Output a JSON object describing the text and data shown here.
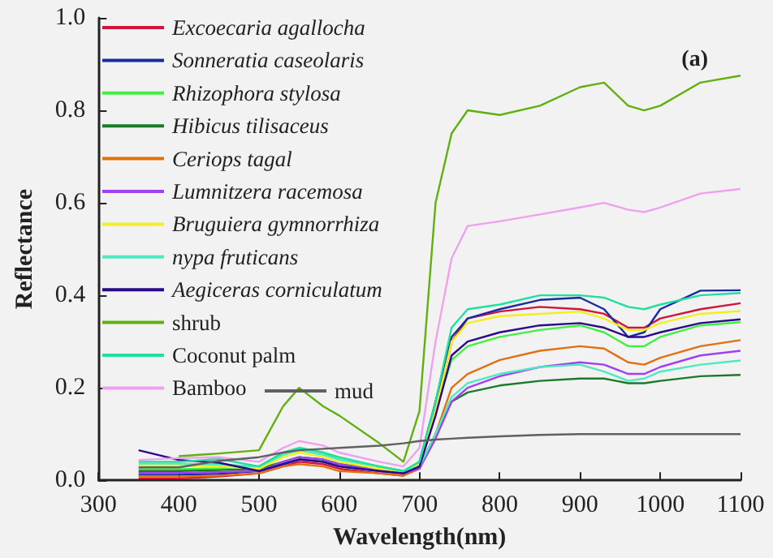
{
  "chart_data": {
    "type": "line",
    "xlabel": "Wavelength(nm)",
    "ylabel": "Reflectance",
    "annotations": [
      "(a)"
    ],
    "x": [
      350,
      400,
      450,
      500,
      530,
      550,
      580,
      600,
      650,
      680,
      700,
      720,
      740,
      760,
      800,
      850,
      900,
      930,
      960,
      980,
      1000,
      1050,
      1100
    ],
    "xlim": [
      300,
      1100
    ],
    "xticks": [
      300,
      400,
      500,
      600,
      700,
      800,
      900,
      1000,
      1100
    ],
    "ylim": [
      0,
      1
    ],
    "yticks": [
      {
        "value": 0,
        "label": "0.0"
      },
      {
        "value": 0.2,
        "label": "0.2"
      },
      {
        "value": 0.4,
        "label": "0.4"
      },
      {
        "value": 0.6,
        "label": "0.6"
      },
      {
        "value": 0.8,
        "label": "0.8"
      },
      {
        "value": 1,
        "label": "1.0"
      }
    ],
    "grid": false,
    "legend": "top left",
    "marker": "none",
    "line_style": "solid",
    "series": [
      {
        "name": "Excoecaria agallocha",
        "color": "#d2143c",
        "values": [
          0.004,
          0.004,
          0.008,
          0.015,
          0.03,
          0.04,
          0.035,
          0.025,
          0.015,
          0.01,
          0.03,
          0.15,
          0.3,
          0.35,
          0.365,
          0.375,
          0.37,
          0.36,
          0.33,
          0.33,
          0.35,
          0.37,
          0.383
        ]
      },
      {
        "name": "Sonneratia caseolaris",
        "color": "#1a2aa0",
        "values": [
          0.012,
          0.012,
          0.014,
          0.02,
          0.035,
          0.045,
          0.04,
          0.03,
          0.02,
          0.015,
          0.04,
          0.17,
          0.31,
          0.35,
          0.37,
          0.39,
          0.395,
          0.37,
          0.31,
          0.32,
          0.37,
          0.41,
          0.411
        ]
      },
      {
        "name": "Rhizophora stylosa",
        "color": "#40f040",
        "values": [
          0.024,
          0.024,
          0.026,
          0.03,
          0.06,
          0.07,
          0.06,
          0.045,
          0.03,
          0.02,
          0.04,
          0.15,
          0.26,
          0.29,
          0.31,
          0.325,
          0.335,
          0.32,
          0.29,
          0.29,
          0.31,
          0.335,
          0.342
        ]
      },
      {
        "name": "Hibicus tilisaceus",
        "color": "#1a7a2a",
        "values": [
          0.02,
          0.02,
          0.022,
          0.025,
          0.04,
          0.05,
          0.045,
          0.035,
          0.025,
          0.02,
          0.03,
          0.1,
          0.17,
          0.19,
          0.205,
          0.215,
          0.22,
          0.22,
          0.21,
          0.21,
          0.215,
          0.225,
          0.228
        ]
      },
      {
        "name": "Ceriops tagal",
        "color": "#e07010",
        "values": [
          0.008,
          0.008,
          0.01,
          0.015,
          0.03,
          0.035,
          0.03,
          0.02,
          0.015,
          0.01,
          0.025,
          0.1,
          0.2,
          0.23,
          0.26,
          0.28,
          0.29,
          0.285,
          0.255,
          0.25,
          0.265,
          0.29,
          0.303
        ]
      },
      {
        "name": "Lumnitzera racemosa",
        "color": "#a040f0",
        "values": [
          0.016,
          0.016,
          0.018,
          0.02,
          0.04,
          0.05,
          0.045,
          0.035,
          0.02,
          0.015,
          0.025,
          0.09,
          0.17,
          0.2,
          0.225,
          0.245,
          0.255,
          0.25,
          0.23,
          0.23,
          0.245,
          0.27,
          0.28
        ]
      },
      {
        "name": "Bruguiera gymnorrhiza",
        "color": "#f0f020",
        "values": [
          0.032,
          0.032,
          0.03,
          0.025,
          0.05,
          0.06,
          0.05,
          0.04,
          0.025,
          0.02,
          0.035,
          0.15,
          0.3,
          0.34,
          0.355,
          0.36,
          0.365,
          0.35,
          0.325,
          0.325,
          0.34,
          0.36,
          0.366
        ]
      },
      {
        "name": "nypa fruticans",
        "color": "#50e8c0",
        "values": [
          0.036,
          0.036,
          0.034,
          0.03,
          0.055,
          0.065,
          0.055,
          0.045,
          0.03,
          0.02,
          0.03,
          0.1,
          0.18,
          0.21,
          0.23,
          0.245,
          0.25,
          0.235,
          0.215,
          0.22,
          0.235,
          0.25,
          0.259
        ]
      },
      {
        "name": "Aegiceras corniculatum",
        "color": "#2a0a8a",
        "values": [
          0.065,
          0.044,
          0.038,
          0.02,
          0.035,
          0.045,
          0.04,
          0.03,
          0.02,
          0.015,
          0.03,
          0.14,
          0.27,
          0.3,
          0.32,
          0.335,
          0.34,
          0.33,
          0.31,
          0.31,
          0.32,
          0.34,
          0.348
        ]
      },
      {
        "name": "shrub",
        "color": "#60b010",
        "values": [
          null,
          0.052,
          0.058,
          0.065,
          0.16,
          0.2,
          0.16,
          0.14,
          0.08,
          0.04,
          0.15,
          0.6,
          0.75,
          0.8,
          0.79,
          0.81,
          0.85,
          0.86,
          0.81,
          0.8,
          0.81,
          0.86,
          0.875
        ]
      },
      {
        "name": "Coconut palm",
        "color": "#20e0a0",
        "values": [
          0.04,
          0.04,
          0.046,
          0.03,
          0.06,
          0.07,
          0.06,
          0.05,
          0.03,
          0.02,
          0.04,
          0.17,
          0.33,
          0.37,
          0.38,
          0.4,
          0.4,
          0.395,
          0.375,
          0.37,
          0.38,
          0.4,
          0.405
        ]
      },
      {
        "name": "Bamboo",
        "color": "#f0a0f0",
        "values": [
          0.044,
          0.048,
          0.05,
          0.04,
          0.07,
          0.085,
          0.075,
          0.06,
          0.04,
          0.03,
          0.07,
          0.3,
          0.48,
          0.55,
          0.56,
          0.575,
          0.59,
          0.6,
          0.585,
          0.58,
          0.59,
          0.62,
          0.63
        ]
      },
      {
        "name": "mud",
        "color": "#606060",
        "values": [
          0.028,
          0.028,
          0.042,
          0.05,
          0.06,
          0.065,
          0.068,
          0.07,
          0.075,
          0.08,
          0.085,
          0.088,
          0.09,
          0.092,
          0.095,
          0.098,
          0.1,
          0.1,
          0.1,
          0.1,
          0.1,
          0.1,
          0.1
        ]
      }
    ]
  }
}
